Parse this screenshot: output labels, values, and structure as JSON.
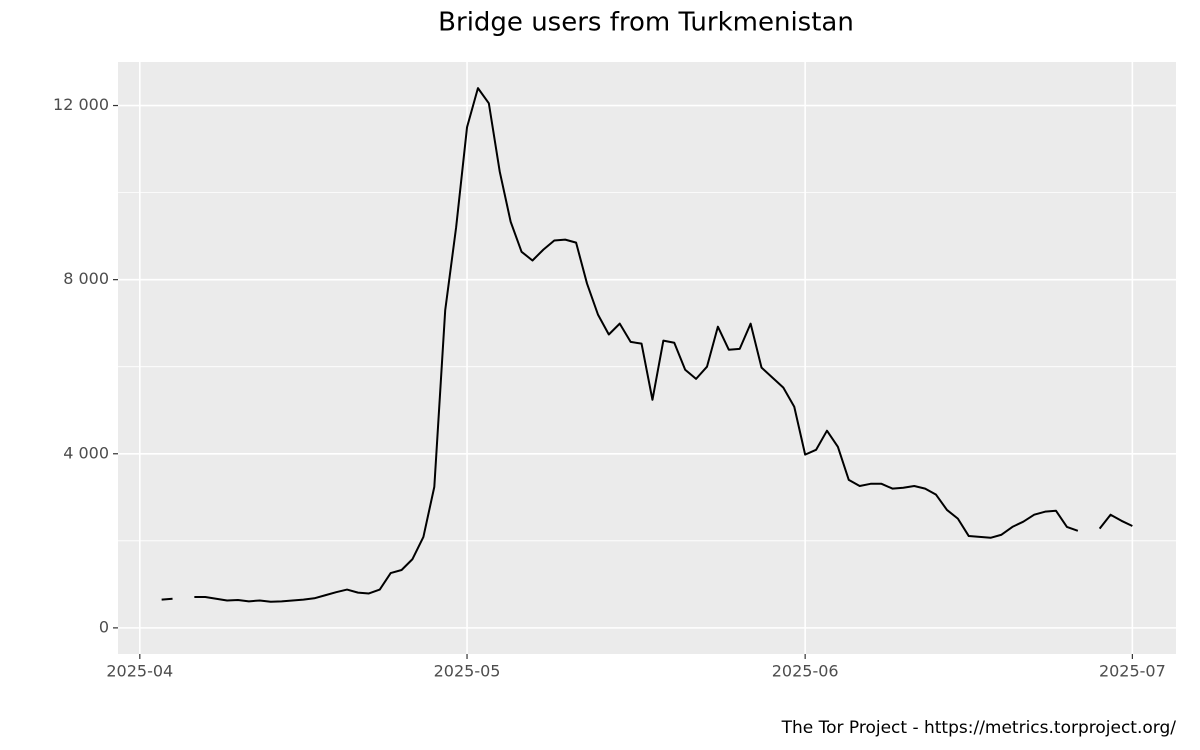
{
  "chart_data": {
    "type": "line",
    "title": "Bridge users from Turkmenistan",
    "caption": "The Tor Project - https://metrics.torproject.org/",
    "color": "#000000",
    "grid": true,
    "x": [
      "2025-04-03",
      "2025-04-04",
      "2025-04-05",
      "2025-04-06",
      "2025-04-07",
      "2025-04-08",
      "2025-04-09",
      "2025-04-10",
      "2025-04-11",
      "2025-04-12",
      "2025-04-13",
      "2025-04-14",
      "2025-04-15",
      "2025-04-16",
      "2025-04-17",
      "2025-04-18",
      "2025-04-19",
      "2025-04-20",
      "2025-04-21",
      "2025-04-22",
      "2025-04-23",
      "2025-04-24",
      "2025-04-25",
      "2025-04-26",
      "2025-04-27",
      "2025-04-28",
      "2025-04-29",
      "2025-04-30",
      "2025-05-01",
      "2025-05-02",
      "2025-05-03",
      "2025-05-04",
      "2025-05-05",
      "2025-05-06",
      "2025-05-07",
      "2025-05-08",
      "2025-05-09",
      "2025-05-10",
      "2025-05-11",
      "2025-05-12",
      "2025-05-13",
      "2025-05-14",
      "2025-05-15",
      "2025-05-16",
      "2025-05-17",
      "2025-05-18",
      "2025-05-19",
      "2025-05-20",
      "2025-05-21",
      "2025-05-22",
      "2025-05-23",
      "2025-05-24",
      "2025-05-25",
      "2025-05-26",
      "2025-05-27",
      "2025-05-28",
      "2025-05-29",
      "2025-05-30",
      "2025-05-31",
      "2025-06-01",
      "2025-06-02",
      "2025-06-03",
      "2025-06-04",
      "2025-06-05",
      "2025-06-06",
      "2025-06-07",
      "2025-06-08",
      "2025-06-09",
      "2025-06-10",
      "2025-06-11",
      "2025-06-12",
      "2025-06-13",
      "2025-06-14",
      "2025-06-15",
      "2025-06-16",
      "2025-06-17",
      "2025-06-18",
      "2025-06-19",
      "2025-06-20",
      "2025-06-21",
      "2025-06-22",
      "2025-06-23",
      "2025-06-24",
      "2025-06-25",
      "2025-06-26",
      "2025-06-27",
      "2025-06-28",
      "2025-06-29",
      "2025-06-30",
      "2025-07-01"
    ],
    "values": [
      650,
      670,
      null,
      710,
      710,
      670,
      630,
      640,
      610,
      630,
      600,
      610,
      630,
      650,
      680,
      750,
      820,
      880,
      810,
      790,
      880,
      1260,
      1330,
      1580,
      2090,
      3240,
      7300,
      9200,
      11500,
      12400,
      12050,
      10480,
      9330,
      8640,
      8440,
      8690,
      8900,
      8920,
      8850,
      7910,
      7200,
      6740,
      6990,
      6570,
      6530,
      5240,
      6600,
      6550,
      5930,
      5720,
      6000,
      6920,
      6390,
      6410,
      6990,
      5980,
      5750,
      5520,
      5080,
      3980,
      4090,
      4530,
      4160,
      3400,
      3260,
      3310,
      3310,
      3200,
      3220,
      3260,
      3200,
      3060,
      2710,
      2510,
      2110,
      2090,
      2070,
      2140,
      2320,
      2440,
      2600,
      2670,
      2690,
      2320,
      2230,
      null,
      2280,
      2600,
      2460,
      2340
    ],
    "xlim": [
      "2025-03-30",
      "2025-07-05"
    ],
    "xticks": [
      {
        "value": "2025-04-01",
        "label": "2025-04"
      },
      {
        "value": "2025-05-01",
        "label": "2025-05"
      },
      {
        "value": "2025-06-01",
        "label": "2025-06"
      },
      {
        "value": "2025-07-01",
        "label": "2025-07"
      }
    ],
    "ylim": [
      -600,
      13000
    ],
    "yticks": [
      0,
      {
        "value": 4000,
        "label": "4 000"
      },
      {
        "value": 8000,
        "label": "8 000"
      },
      {
        "value": 12000,
        "label": "12 000"
      }
    ]
  }
}
